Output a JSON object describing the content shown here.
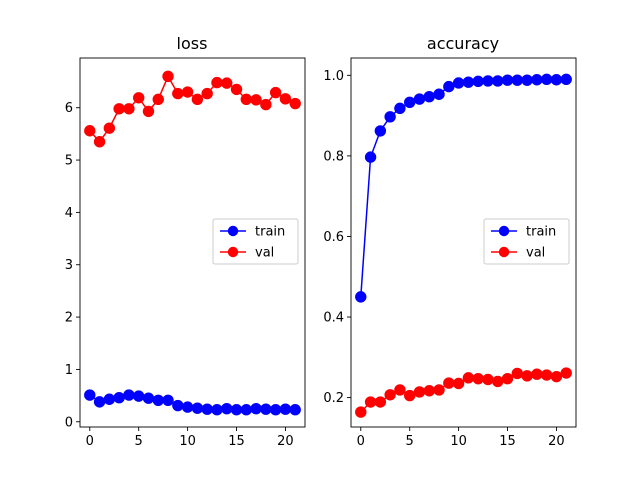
{
  "chart_data": [
    {
      "type": "line",
      "title": "loss",
      "xlabel": "",
      "ylabel": "",
      "xlim": [
        -1,
        22
      ],
      "ylim": [
        -0.1,
        6.95
      ],
      "xticks": [
        0,
        5,
        10,
        15,
        20
      ],
      "yticks": [
        0,
        1,
        2,
        3,
        4,
        5,
        6
      ],
      "grid": false,
      "legend": {
        "placement": "center-right",
        "entries": [
          "train",
          "val"
        ]
      },
      "series": [
        {
          "name": "train",
          "color": "#0000ff",
          "marker": "circle",
          "x": [
            0,
            1,
            2,
            3,
            4,
            5,
            6,
            7,
            8,
            9,
            10,
            11,
            12,
            13,
            14,
            15,
            16,
            17,
            18,
            19,
            20,
            21
          ],
          "values": [
            0.51,
            0.38,
            0.43,
            0.46,
            0.51,
            0.49,
            0.45,
            0.41,
            0.41,
            0.31,
            0.28,
            0.26,
            0.24,
            0.23,
            0.25,
            0.23,
            0.23,
            0.25,
            0.24,
            0.23,
            0.24,
            0.23
          ]
        },
        {
          "name": "val",
          "color": "#ff0000",
          "marker": "circle",
          "x": [
            0,
            1,
            2,
            3,
            4,
            5,
            6,
            7,
            8,
            9,
            10,
            11,
            12,
            13,
            14,
            15,
            16,
            17,
            18,
            19,
            20,
            21
          ],
          "values": [
            5.56,
            5.35,
            5.61,
            5.98,
            5.98,
            6.19,
            5.93,
            6.16,
            6.6,
            6.27,
            6.3,
            6.16,
            6.27,
            6.48,
            6.47,
            6.35,
            6.16,
            6.15,
            6.06,
            6.29,
            6.17,
            6.08
          ]
        }
      ]
    },
    {
      "type": "line",
      "title": "accuracy",
      "xlabel": "",
      "ylabel": "",
      "xlim": [
        -1,
        22
      ],
      "ylim": [
        0.127,
        1.043
      ],
      "xticks": [
        0,
        5,
        10,
        15,
        20
      ],
      "yticks": [
        0.2,
        0.4,
        0.6,
        0.8,
        1.0
      ],
      "ytick_labels": [
        "0.2",
        "0.4",
        "0.6",
        "0.8",
        "1.0"
      ],
      "grid": false,
      "legend": {
        "placement": "center-right",
        "entries": [
          "train",
          "val"
        ]
      },
      "series": [
        {
          "name": "train",
          "color": "#0000ff",
          "marker": "circle",
          "x": [
            0,
            1,
            2,
            3,
            4,
            5,
            6,
            7,
            8,
            9,
            10,
            11,
            12,
            13,
            14,
            15,
            16,
            17,
            18,
            19,
            20,
            21
          ],
          "values": [
            0.45,
            0.797,
            0.862,
            0.897,
            0.918,
            0.933,
            0.941,
            0.947,
            0.953,
            0.972,
            0.981,
            0.983,
            0.985,
            0.986,
            0.986,
            0.988,
            0.988,
            0.988,
            0.989,
            0.99,
            0.989,
            0.99
          ]
        },
        {
          "name": "val",
          "color": "#ff0000",
          "marker": "circle",
          "x": [
            0,
            1,
            2,
            3,
            4,
            5,
            6,
            7,
            8,
            9,
            10,
            11,
            12,
            13,
            14,
            15,
            16,
            17,
            18,
            19,
            20,
            21
          ],
          "values": [
            0.164,
            0.189,
            0.189,
            0.207,
            0.219,
            0.205,
            0.214,
            0.217,
            0.219,
            0.236,
            0.235,
            0.249,
            0.247,
            0.245,
            0.24,
            0.247,
            0.26,
            0.254,
            0.258,
            0.256,
            0.252,
            0.261
          ]
        }
      ]
    }
  ]
}
